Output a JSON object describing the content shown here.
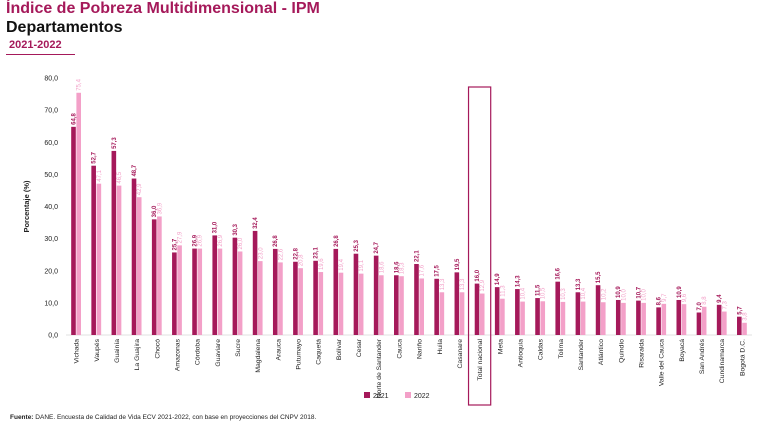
{
  "header": {
    "title": "Índice de Pobreza Multidimensional - IPM",
    "subtitle": "Departamentos",
    "period": "2021-2022"
  },
  "source": {
    "label": "Fuente:",
    "text": "DANE. Encuesta de Calidad de Vida ECV 2021-2022, con base en proyecciones del CNPV 2018."
  },
  "colors": {
    "series_2021": "#a5195a",
    "series_2022": "#f3a0c8",
    "highlight_box": "#a5195a",
    "axis_text": "#222222"
  },
  "chart_data": {
    "type": "bar",
    "ylabel": "Porcentaje  (%)",
    "ylim": [
      0,
      80
    ],
    "yticks": [
      "0,0",
      "10,0",
      "20,0",
      "30,0",
      "40,0",
      "50,0",
      "60,0",
      "70,0",
      "80,0"
    ],
    "grid": false,
    "legend_position": "bottom",
    "highlight_category": "Total nacional",
    "categories": [
      "Vichada",
      "Vaupés",
      "Guainía",
      "La Guajira",
      "Chocó",
      "Amazonas",
      "Córdoba",
      "Guaviare",
      "Sucre",
      "Magdalena",
      "Arauca",
      "Putumayo",
      "Caquetá",
      "Bolívar",
      "Cesar",
      "Norte de Santander",
      "Cauca",
      "Nariño",
      "Huila",
      "Casanare",
      "Total nacional",
      "Meta",
      "Antioquia",
      "Caldas",
      "Tolima",
      "Santander",
      "Atlántico",
      "Quindío",
      "Risaralda",
      "Valle del Cauca",
      "Boyacá",
      "San Andrés",
      "Cundinamarca",
      "Bogotá D.C."
    ],
    "series": [
      {
        "name": "2021",
        "values": [
          64.8,
          52.7,
          57.3,
          48.7,
          36.0,
          25.7,
          26.9,
          31.0,
          30.3,
          32.4,
          26.8,
          22.8,
          23.1,
          26.8,
          25.3,
          24.7,
          18.6,
          22.1,
          17.5,
          19.5,
          16.0,
          14.9,
          14.3,
          11.5,
          16.6,
          13.3,
          15.5,
          10.9,
          10.7,
          8.6,
          10.9,
          7.0,
          9.4,
          5.7
        ],
        "labels": [
          "64,8",
          "52,7",
          "57,3",
          "48,7",
          "36,0",
          "25,7",
          "26,9",
          "31,0",
          "30,3",
          "32,4",
          "26,8",
          "22,8",
          "23,1",
          "26,8",
          "25,3",
          "24,7",
          "18,6",
          "22,1",
          "17,5",
          "19,5",
          "16,0",
          "14,9",
          "14,3",
          "11,5",
          "16,6",
          "13,3",
          "15,5",
          "10,9",
          "10,7",
          "8,6",
          "10,9",
          "7,0",
          "9,4",
          "5,7"
        ]
      },
      {
        "name": "2022",
        "values": [
          75.4,
          47.1,
          46.5,
          42.9,
          36.9,
          27.9,
          26.9,
          26.9,
          26.0,
          23.0,
          22.6,
          20.8,
          19.6,
          19.4,
          19.1,
          18.6,
          18.3,
          17.6,
          13.3,
          13.3,
          12.9,
          11.3,
          10.4,
          10.5,
          10.3,
          10.4,
          10.2,
          10.0,
          10.0,
          9.7,
          9.6,
          8.8,
          7.3,
          3.8
        ],
        "labels": [
          "75,4",
          "47,1",
          "46,5",
          "42,9",
          "36,9",
          "27,9",
          "26,9",
          "26,9",
          "26,0",
          "23,0",
          "22,6",
          "20,8",
          "19,6",
          "19,4",
          "19,1",
          "18,6",
          "18,3",
          "17,6",
          "13,3",
          "13,3",
          "12,9",
          "11,3",
          "10,4",
          "10,5",
          "10,3",
          "10,4",
          "10,2",
          "10,0",
          "10,0",
          "9,7",
          "9,6",
          "8,8",
          "7,3",
          "3,8"
        ]
      }
    ]
  }
}
